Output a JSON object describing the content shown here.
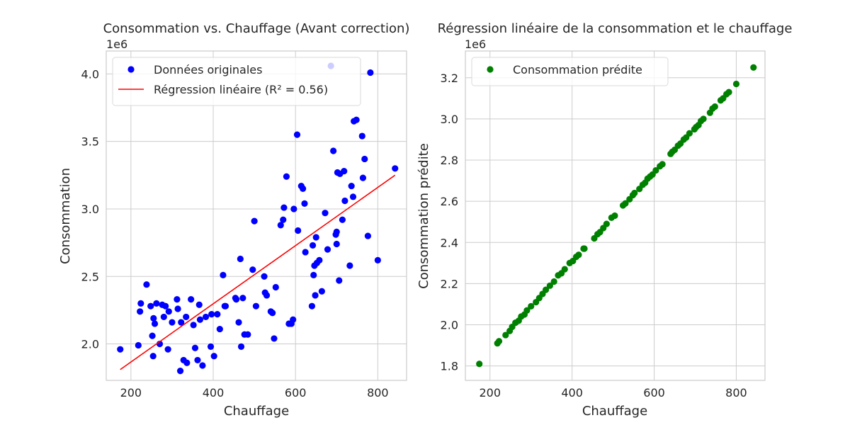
{
  "chart_data": [
    {
      "type": "scatter",
      "title": "Consommation vs. Chauffage (Avant correction)",
      "xlabel": "Chauffage",
      "ylabel": "Consommation",
      "y_offset_label": "1e6",
      "xlim": [
        140,
        870
      ],
      "ylim": [
        1.73,
        4.17
      ],
      "xticks": [
        200,
        400,
        600,
        800
      ],
      "yticks": [
        2.0,
        2.5,
        3.0,
        3.5,
        4.0
      ],
      "ytick_labels": [
        "2.0",
        "2.5",
        "3.0",
        "3.5",
        "4.0"
      ],
      "grid": true,
      "legend_position": "top-left",
      "series": [
        {
          "name": "Données originales",
          "kind": "scatter",
          "color": "#0000ff",
          "x": [
            174,
            218,
            222,
            224,
            238,
            248,
            252,
            254,
            255,
            258,
            262,
            270,
            276,
            280,
            284,
            290,
            292,
            300,
            312,
            314,
            320,
            322,
            328,
            334,
            336,
            346,
            352,
            356,
            362,
            366,
            368,
            374,
            382,
            394,
            396,
            402,
            410,
            416,
            424,
            428,
            430,
            454,
            456,
            462,
            466,
            468,
            472,
            476,
            484,
            496,
            500,
            504,
            524,
            526,
            530,
            540,
            544,
            548,
            552,
            564,
            570,
            572,
            578,
            584,
            590,
            594,
            596,
            604,
            606,
            614,
            618,
            622,
            624,
            640,
            642,
            644,
            646,
            648,
            650,
            652,
            658,
            664,
            672,
            678,
            686,
            692,
            698,
            700,
            700,
            702,
            706,
            708,
            714,
            718,
            720,
            732,
            736,
            740,
            742,
            748,
            762,
            764,
            768,
            776,
            782,
            800,
            842
          ],
          "y": [
            1.96,
            1.99,
            2.24,
            2.3,
            2.44,
            2.28,
            2.06,
            1.91,
            2.19,
            2.15,
            2.3,
            2.0,
            2.29,
            2.2,
            2.28,
            1.96,
            2.24,
            2.16,
            2.33,
            2.26,
            1.8,
            2.16,
            1.88,
            2.2,
            1.86,
            2.33,
            2.14,
            1.97,
            1.88,
            2.29,
            2.18,
            1.84,
            2.2,
            1.98,
            2.22,
            1.91,
            2.22,
            2.11,
            2.51,
            2.28,
            2.28,
            2.34,
            2.33,
            2.16,
            2.63,
            1.98,
            2.34,
            2.07,
            2.07,
            2.55,
            2.91,
            2.28,
            2.5,
            2.38,
            2.36,
            2.24,
            2.23,
            2.04,
            2.42,
            2.88,
            2.92,
            3.01,
            3.24,
            2.15,
            2.15,
            2.18,
            3.0,
            3.55,
            2.84,
            3.17,
            3.15,
            3.04,
            2.68,
            2.28,
            2.73,
            2.51,
            2.58,
            2.36,
            2.79,
            2.6,
            2.62,
            2.39,
            2.97,
            2.7,
            4.06,
            3.43,
            2.81,
            2.83,
            2.74,
            3.27,
            2.47,
            3.26,
            2.92,
            3.28,
            3.06,
            2.58,
            3.17,
            3.09,
            3.65,
            3.66,
            3.54,
            3.23,
            3.37,
            2.8,
            4.01,
            2.62,
            3.3
          ]
        },
        {
          "name": "Régression linéaire (R² = 0.56)",
          "kind": "line",
          "color": "#ff0000",
          "x": [
            174,
            842
          ],
          "y": [
            1.81,
            3.25
          ]
        }
      ]
    },
    {
      "type": "scatter",
      "title": "Régression linéaire de la consommation et le chauffage",
      "xlabel": "Chauffage",
      "ylabel": "Consommation prédite",
      "y_offset_label": "1e6",
      "xlim": [
        140,
        870
      ],
      "ylim": [
        1.73,
        3.33
      ],
      "xticks": [
        200,
        400,
        600,
        800
      ],
      "yticks": [
        1.8,
        2.0,
        2.2,
        2.4,
        2.6,
        2.8,
        3.0,
        3.2
      ],
      "ytick_labels": [
        "1.8",
        "2.0",
        "2.2",
        "2.4",
        "2.6",
        "2.8",
        "3.0",
        "3.2"
      ],
      "grid": true,
      "legend_position": "top-left",
      "series": [
        {
          "name": "Consommation prédite",
          "kind": "scatter",
          "color": "#008000",
          "x": [
            174,
            218,
            222,
            238,
            248,
            254,
            262,
            270,
            276,
            284,
            290,
            300,
            312,
            320,
            328,
            336,
            346,
            356,
            366,
            374,
            382,
            394,
            402,
            410,
            416,
            428,
            430,
            454,
            462,
            468,
            476,
            484,
            496,
            504,
            524,
            530,
            540,
            548,
            552,
            564,
            572,
            578,
            584,
            590,
            596,
            604,
            614,
            620,
            640,
            644,
            650,
            658,
            664,
            672,
            678,
            686,
            698,
            702,
            708,
            714,
            720,
            736,
            742,
            748,
            762,
            768,
            776,
            782,
            800,
            842
          ],
          "y": [
            1.81,
            1.91,
            1.92,
            1.95,
            1.97,
            1.99,
            2.01,
            2.02,
            2.04,
            2.05,
            2.07,
            2.09,
            2.11,
            2.13,
            2.15,
            2.17,
            2.19,
            2.21,
            2.24,
            2.25,
            2.27,
            2.3,
            2.31,
            2.33,
            2.34,
            2.37,
            2.37,
            2.42,
            2.44,
            2.45,
            2.47,
            2.49,
            2.52,
            2.53,
            2.58,
            2.59,
            2.61,
            2.63,
            2.64,
            2.66,
            2.68,
            2.69,
            2.71,
            2.72,
            2.73,
            2.75,
            2.77,
            2.78,
            2.83,
            2.84,
            2.85,
            2.87,
            2.88,
            2.9,
            2.91,
            2.93,
            2.95,
            2.96,
            2.97,
            2.99,
            3.0,
            3.03,
            3.05,
            3.06,
            3.09,
            3.1,
            3.12,
            3.13,
            3.17,
            3.25
          ]
        }
      ]
    }
  ]
}
